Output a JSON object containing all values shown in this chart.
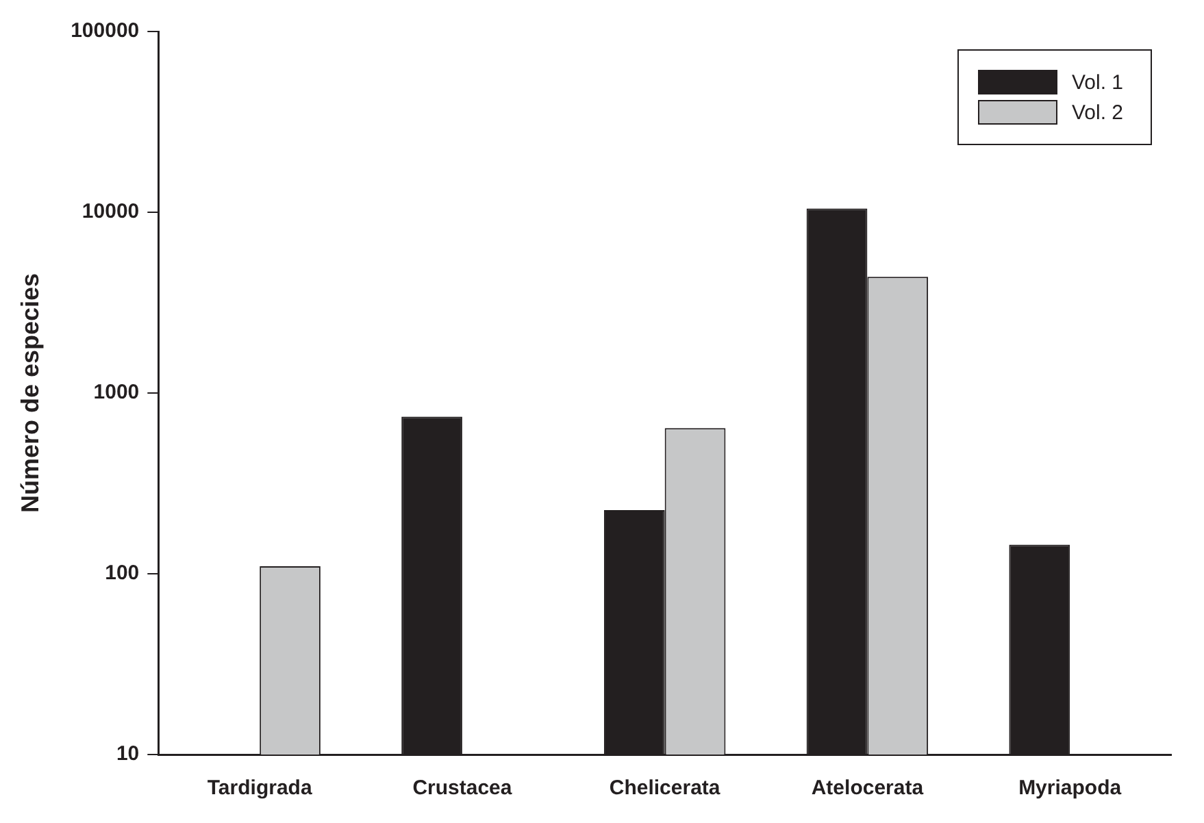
{
  "chart_data": {
    "type": "bar",
    "ylabel": "Número de especies",
    "categories": [
      "Tardigrada",
      "Crustacea",
      "Chelicerata",
      "Atelocerata",
      "Myriapoda"
    ],
    "series": [
      {
        "name": "Vol. 1",
        "color": "#231f20",
        "values": [
          null,
          740,
          225,
          10500,
          145
        ]
      },
      {
        "name": "Vol. 2",
        "color": "#c6c7c8",
        "values": [
          110,
          null,
          640,
          4400,
          null
        ]
      }
    ],
    "log": "y",
    "ylim": [
      10,
      100000
    ],
    "yticks": [
      10,
      100,
      1000,
      10000,
      100000
    ],
    "grid": false,
    "legend": "top right"
  }
}
